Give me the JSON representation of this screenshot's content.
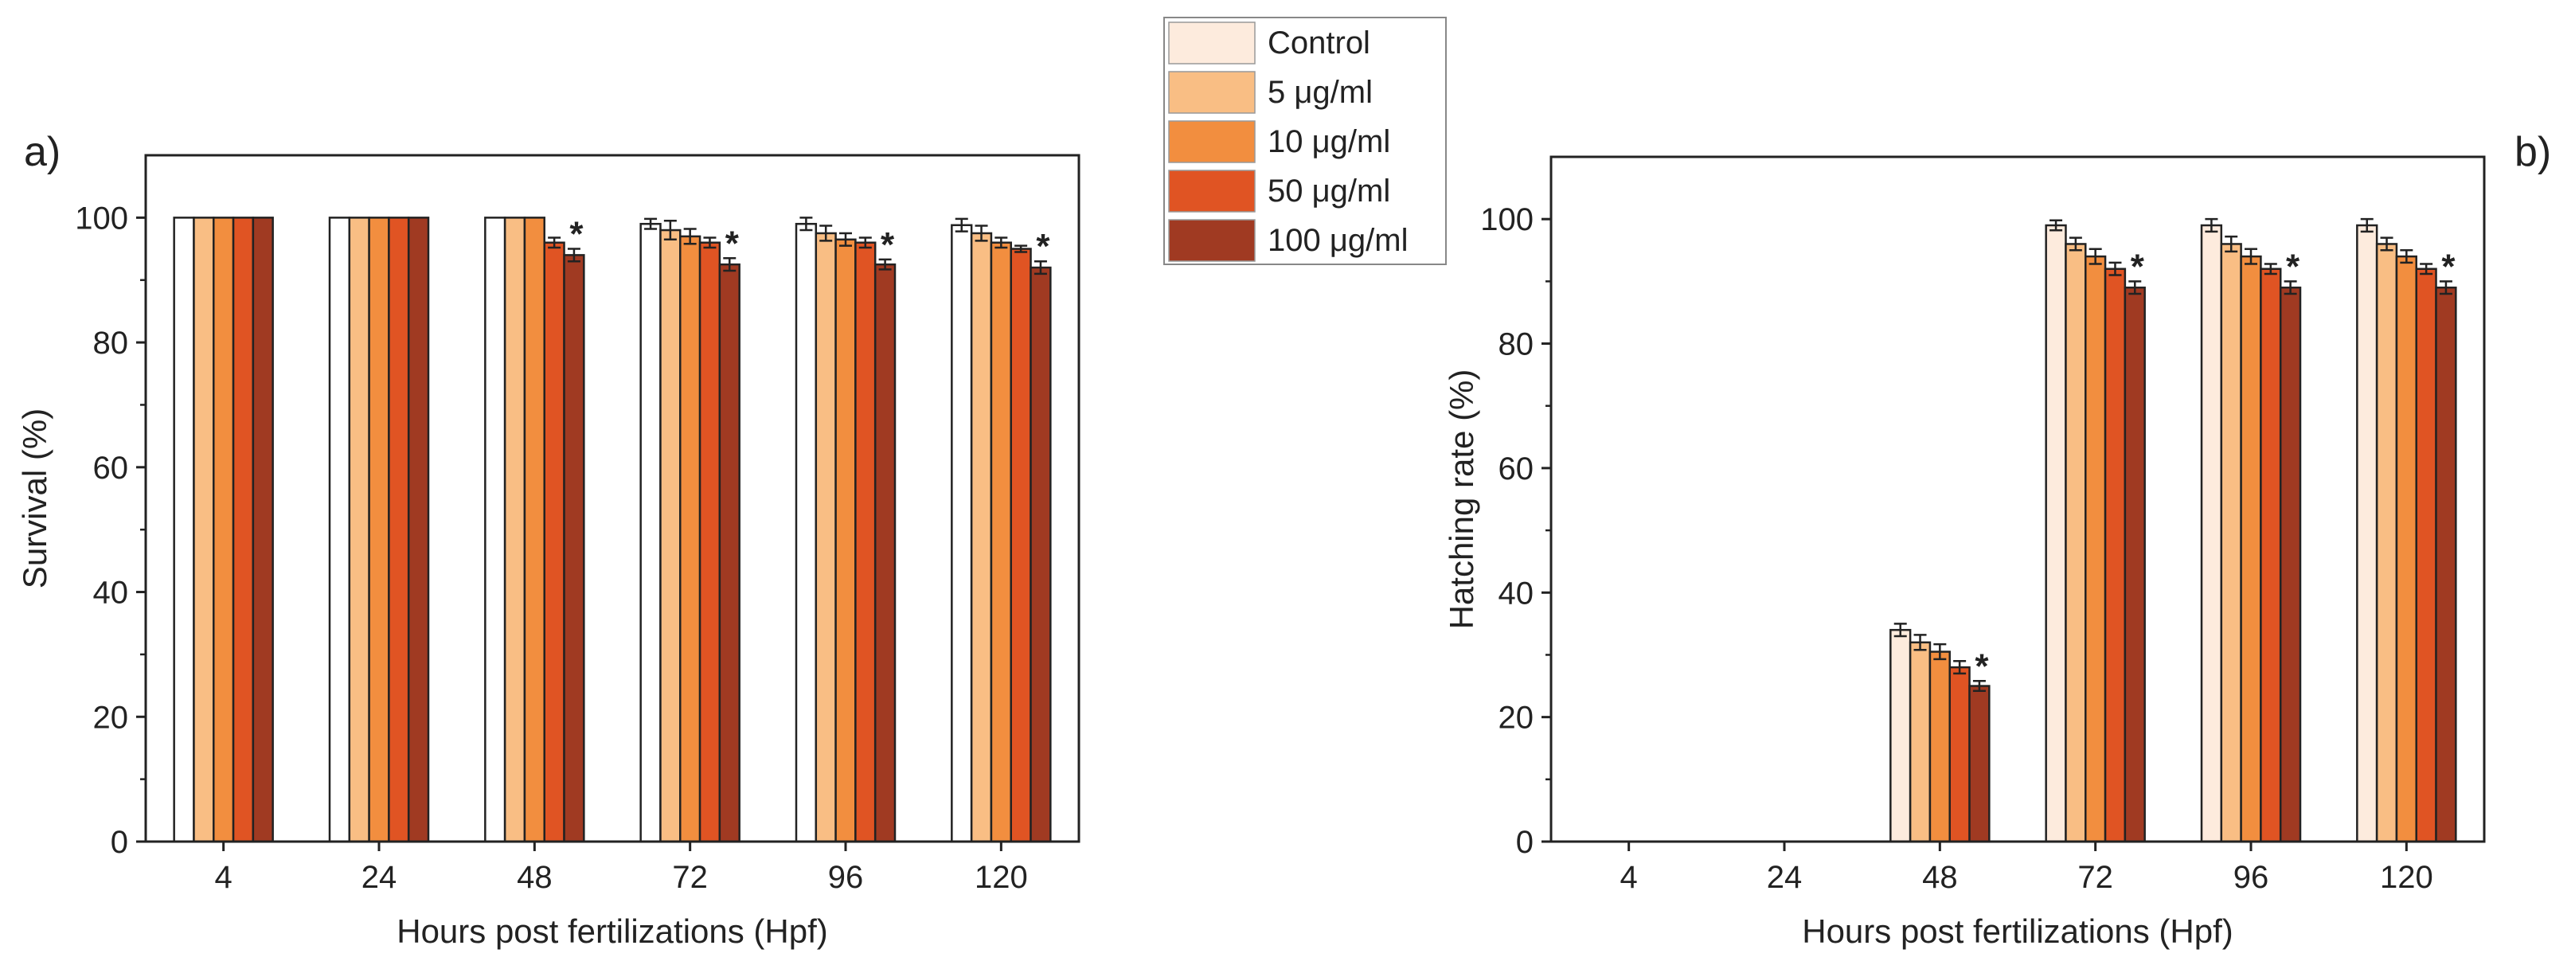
{
  "legend": {
    "entries": [
      {
        "label": "Control",
        "color": "#FDEBDD"
      },
      {
        "label": "5 μg/ml",
        "color": "#F9BE84"
      },
      {
        "label": "10 μg/ml",
        "color": "#F28E3F"
      },
      {
        "label": "50 μg/ml",
        "color": "#E05423"
      },
      {
        "label": "100 μg/ml",
        "color": "#A03A22"
      }
    ]
  },
  "chart_data": [
    {
      "type": "bar",
      "panel_label": "a)",
      "title": "",
      "xlabel": "Hours post fertilizations (Hpf)",
      "ylabel": "Survival (%)",
      "ylim": [
        0,
        110
      ],
      "yticks": [
        0,
        20,
        40,
        60,
        80,
        100
      ],
      "categories": [
        "4",
        "24",
        "48",
        "72",
        "96",
        "120"
      ],
      "control_fill": "#FFFFFF",
      "series": [
        {
          "name": "Control",
          "values": [
            100,
            100,
            100,
            99,
            99,
            98.8
          ],
          "errors": [
            0,
            0,
            0,
            0.8,
            1.0,
            1.0
          ]
        },
        {
          "name": "5 μg/ml",
          "values": [
            100,
            100,
            100,
            98,
            97.5,
            97.5
          ],
          "errors": [
            0,
            0,
            0,
            1.5,
            1.2,
            1.2
          ]
        },
        {
          "name": "10 μg/ml",
          "values": [
            100,
            100,
            100,
            97,
            96.5,
            96
          ],
          "errors": [
            0,
            0,
            0,
            1.2,
            1.0,
            0.8
          ]
        },
        {
          "name": "50 μg/ml",
          "values": [
            100,
            100,
            96,
            96,
            96,
            95
          ],
          "errors": [
            0,
            0,
            0.8,
            0.8,
            0.8,
            0.5
          ]
        },
        {
          "name": "100 μg/ml",
          "values": [
            100,
            100,
            94,
            92.5,
            92.5,
            92
          ],
          "errors": [
            0,
            0,
            1.0,
            1.0,
            0.8,
            1.0
          ]
        }
      ],
      "significance": [
        {
          "category": "48",
          "series": "100 μg/ml",
          "mark": "*"
        },
        {
          "category": "72",
          "series": "100 μg/ml",
          "mark": "*"
        },
        {
          "category": "96",
          "series": "100 μg/ml",
          "mark": "*"
        },
        {
          "category": "120",
          "series": "100 μg/ml",
          "mark": "*"
        }
      ]
    },
    {
      "type": "bar",
      "panel_label": "b)",
      "title": "",
      "xlabel": "Hours post fertilizations (Hpf)",
      "ylabel": "Hatching rate (%)",
      "ylim": [
        0,
        110
      ],
      "yticks": [
        0,
        20,
        40,
        60,
        80,
        100
      ],
      "categories": [
        "4",
        "24",
        "48",
        "72",
        "96",
        "120"
      ],
      "control_fill": "#FDEBDD",
      "series": [
        {
          "name": "Control",
          "values": [
            0,
            0,
            34,
            99,
            99,
            99
          ],
          "errors": [
            0,
            0,
            1.0,
            0.8,
            1.0,
            1.0
          ]
        },
        {
          "name": "5 μg/ml",
          "values": [
            0,
            0,
            32,
            96,
            96,
            96
          ],
          "errors": [
            0,
            0,
            1.2,
            1.0,
            1.2,
            1.0
          ]
        },
        {
          "name": "10 μg/ml",
          "values": [
            0,
            0,
            30.5,
            94,
            94,
            94
          ],
          "errors": [
            0,
            0,
            1.2,
            1.2,
            1.2,
            1.0
          ]
        },
        {
          "name": "50 μg/ml",
          "values": [
            0,
            0,
            28,
            92,
            92,
            92
          ],
          "errors": [
            0,
            0,
            1.0,
            1.0,
            0.8,
            0.8
          ]
        },
        {
          "name": "100 μg/ml",
          "values": [
            0,
            0,
            25,
            89,
            89,
            89
          ],
          "errors": [
            0,
            0,
            0.8,
            1.0,
            1.0,
            1.0
          ]
        }
      ],
      "significance": [
        {
          "category": "48",
          "series": "100 μg/ml",
          "mark": "*"
        },
        {
          "category": "72",
          "series": "100 μg/ml",
          "mark": "*"
        },
        {
          "category": "96",
          "series": "100 μg/ml",
          "mark": "*"
        },
        {
          "category": "120",
          "series": "100 μg/ml",
          "mark": "*"
        }
      ]
    }
  ]
}
